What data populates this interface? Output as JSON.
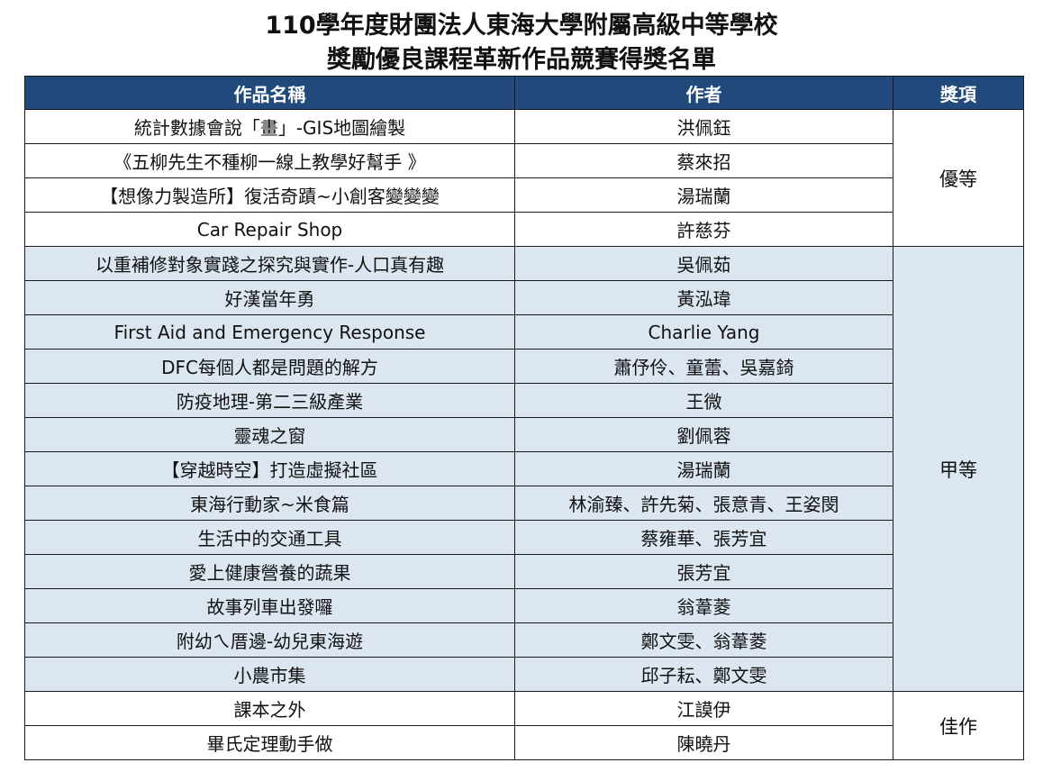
{
  "title": {
    "line1": "110學年度財團法人東海大學附屬高級中等學校",
    "line2": "獎勵優良課程革新作品競賽得獎名單"
  },
  "table": {
    "headers": [
      "作品名稱",
      "作者",
      "獎項"
    ],
    "groups": [
      {
        "award": "優等",
        "rows": [
          [
            "統計數據會說「畫」-GIS地圖繪製",
            "洪佩鈺"
          ],
          [
            "《五柳先生不種柳一線上教學好幫手 》",
            "蔡來招"
          ],
          [
            "【想像力製造所】復活奇蹟~小創客變變變",
            "湯瑞蘭"
          ],
          [
            "Car Repair Shop",
            "許慈芬"
          ]
        ]
      },
      {
        "award": "甲等",
        "rows": [
          [
            "以重補修對象實踐之探究與實作-人口真有趣",
            "吳佩茹"
          ],
          [
            "好漢當年勇",
            "黃泓瑋"
          ],
          [
            "First Aid and Emergency Response",
            "Charlie Yang"
          ],
          [
            "DFC每個人都是問題的解方",
            "蕭伃伶、童蕾、吳嘉錡"
          ],
          [
            "防疫地理-第二三級產業",
            "王微"
          ],
          [
            "靈魂之窗",
            "劉佩蓉"
          ],
          [
            "【穿越時空】打造虛擬社區",
            "湯瑞蘭"
          ],
          [
            "東海行動家~米食篇",
            "林渝臻、許先菊、張意青、王姿閔"
          ],
          [
            "生活中的交通工具",
            "蔡雍華、張芳宜"
          ],
          [
            "愛上健康營養的蔬果",
            "張芳宜"
          ],
          [
            "故事列車出發囉",
            "翁葦菱"
          ],
          [
            "附幼ㄟ厝邊-幼兒東海遊",
            "鄭文雯、翁葦菱"
          ],
          [
            "小農市集",
            "邱子耘、鄭文雯"
          ]
        ]
      },
      {
        "award": "佳作",
        "rows": [
          [
            "課本之外",
            "江謨伊"
          ],
          [
            "畢氏定理動手做",
            "陳曉丹"
          ]
        ]
      }
    ],
    "colors": {
      "header": "#21497c",
      "alt_row": "#dce6f1"
    }
  }
}
